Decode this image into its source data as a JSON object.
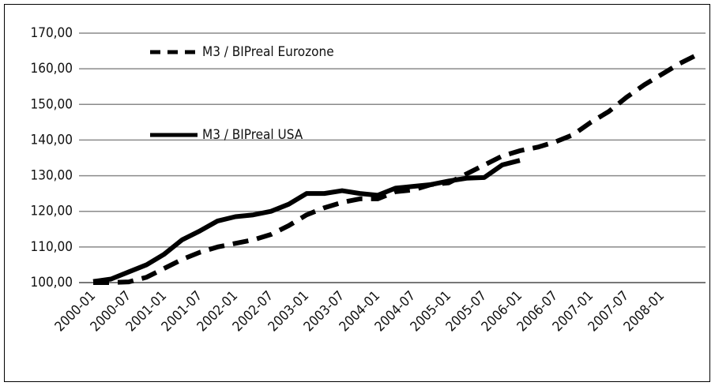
{
  "chart_data": {
    "type": "line",
    "categories": [
      "2000-01",
      null,
      "2000-07",
      null,
      "2001-01",
      null,
      "2001-07",
      null,
      "2002-01",
      null,
      "2002-07",
      null,
      "2003-01",
      null,
      "2003-07",
      null,
      "2004-01",
      null,
      "2004-07",
      null,
      "2005-01",
      null,
      "2005-07",
      null,
      "2006-01",
      null,
      "2006-07",
      null,
      "2007-01",
      null,
      "2007-07",
      null,
      "2008-01",
      null,
      null
    ],
    "series": [
      {
        "name": "M3 / BIPreal Eurozone",
        "color": "#000000",
        "dash": true,
        "values": [
          100,
          100,
          100.2,
          101.5,
          104,
          106.5,
          108.5,
          110,
          111,
          112,
          113.5,
          116,
          119,
          121,
          122.5,
          123.5,
          123.5,
          125.5,
          126,
          127.5,
          128,
          130.5,
          133,
          135.5,
          137,
          138,
          139.5,
          141.5,
          145,
          148,
          152,
          155.5,
          158.5,
          161.5,
          164
        ]
      },
      {
        "name": "M3 / BIPreal USA",
        "color": "#000000",
        "dash": false,
        "values": [
          100.3,
          101,
          103,
          105,
          108,
          112,
          114.5,
          117.3,
          118.5,
          119,
          120,
          122,
          125,
          125,
          125.8,
          125,
          124.5,
          126.5,
          127,
          127.5,
          128.5,
          129.3,
          129.5,
          133,
          134.3,
          null,
          null,
          null,
          null,
          null,
          null,
          null,
          null,
          null,
          null
        ]
      }
    ],
    "ylim": [
      100,
      170
    ],
    "yticks": [
      {
        "value": 100,
        "label": "100,00"
      },
      {
        "value": 110,
        "label": "110,00"
      },
      {
        "value": 120,
        "label": "120,00"
      },
      {
        "value": 130,
        "label": "130,00"
      },
      {
        "value": 140,
        "label": "140,00"
      },
      {
        "value": 150,
        "label": "150,00"
      },
      {
        "value": 160,
        "label": "160,00"
      },
      {
        "value": 170,
        "label": "170,00"
      }
    ],
    "grid": true,
    "legend": "upper left"
  }
}
